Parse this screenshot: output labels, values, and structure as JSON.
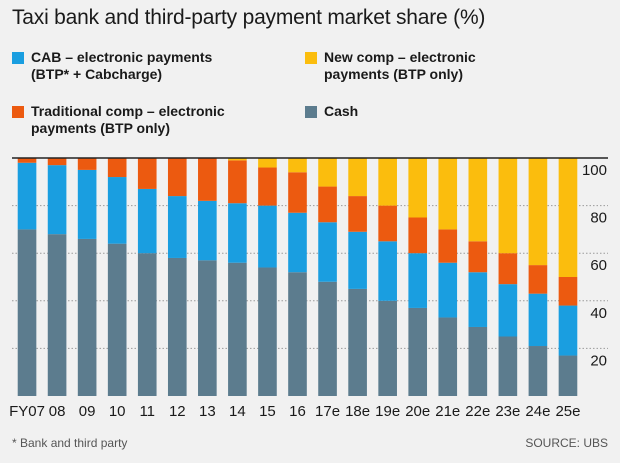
{
  "title": "Taxi bank and third-party payment market share (%)",
  "footnote": "* Bank and third party",
  "source": "SOURCE: UBS",
  "legend": [
    {
      "key": "cab",
      "lines": [
        "CAB – electronic payments",
        "(BTP* + Cabcharge)"
      ],
      "color": "#1a9ee0"
    },
    {
      "key": "newcomp",
      "lines": [
        "New comp – electronic",
        "payments (BTP only)"
      ],
      "color": "#fbbd0d"
    },
    {
      "key": "trad",
      "lines": [
        "Traditional comp – electronic",
        "payments (BTP only)"
      ],
      "color": "#ec5a10"
    },
    {
      "key": "cash",
      "lines": [
        "Cash"
      ],
      "color": "#5c7c8e"
    }
  ],
  "chart_data": {
    "type": "bar",
    "stacked": true,
    "categories": [
      "FY07",
      "08",
      "09",
      "10",
      "11",
      "12",
      "13",
      "14",
      "15",
      "16",
      "17e",
      "18e",
      "19e",
      "20e",
      "21e",
      "22e",
      "23e",
      "24e",
      "25e"
    ],
    "ylim": [
      0,
      100
    ],
    "yticks": [
      20,
      40,
      60,
      80,
      100
    ],
    "grid": true,
    "series": [
      {
        "name": "Cash",
        "key": "cash",
        "color": "#5c7c8e",
        "values": [
          70,
          68,
          66,
          64,
          60,
          58,
          57,
          56,
          54,
          52,
          48,
          45,
          40,
          37,
          33,
          29,
          25,
          21,
          17
        ]
      },
      {
        "name": "CAB – electronic payments (BTP* + Cabcharge)",
        "key": "cab",
        "color": "#1a9ee0",
        "values": [
          28,
          29,
          29,
          28,
          27,
          26,
          25,
          25,
          26,
          25,
          25,
          24,
          25,
          23,
          23,
          23,
          22,
          22,
          21
        ]
      },
      {
        "name": "Traditional comp – electronic payments (BTP only)",
        "key": "trad",
        "color": "#ec5a10",
        "values": [
          2,
          3,
          5,
          8,
          13,
          16,
          18,
          18,
          16,
          17,
          15,
          15,
          15,
          15,
          14,
          13,
          13,
          12,
          12
        ]
      },
      {
        "name": "New comp – electronic payments (BTP only)",
        "key": "newcomp",
        "color": "#fbbd0d",
        "values": [
          0,
          0,
          0,
          0,
          0,
          0,
          0,
          1,
          4,
          6,
          12,
          16,
          20,
          25,
          30,
          35,
          40,
          45,
          50
        ]
      }
    ]
  }
}
